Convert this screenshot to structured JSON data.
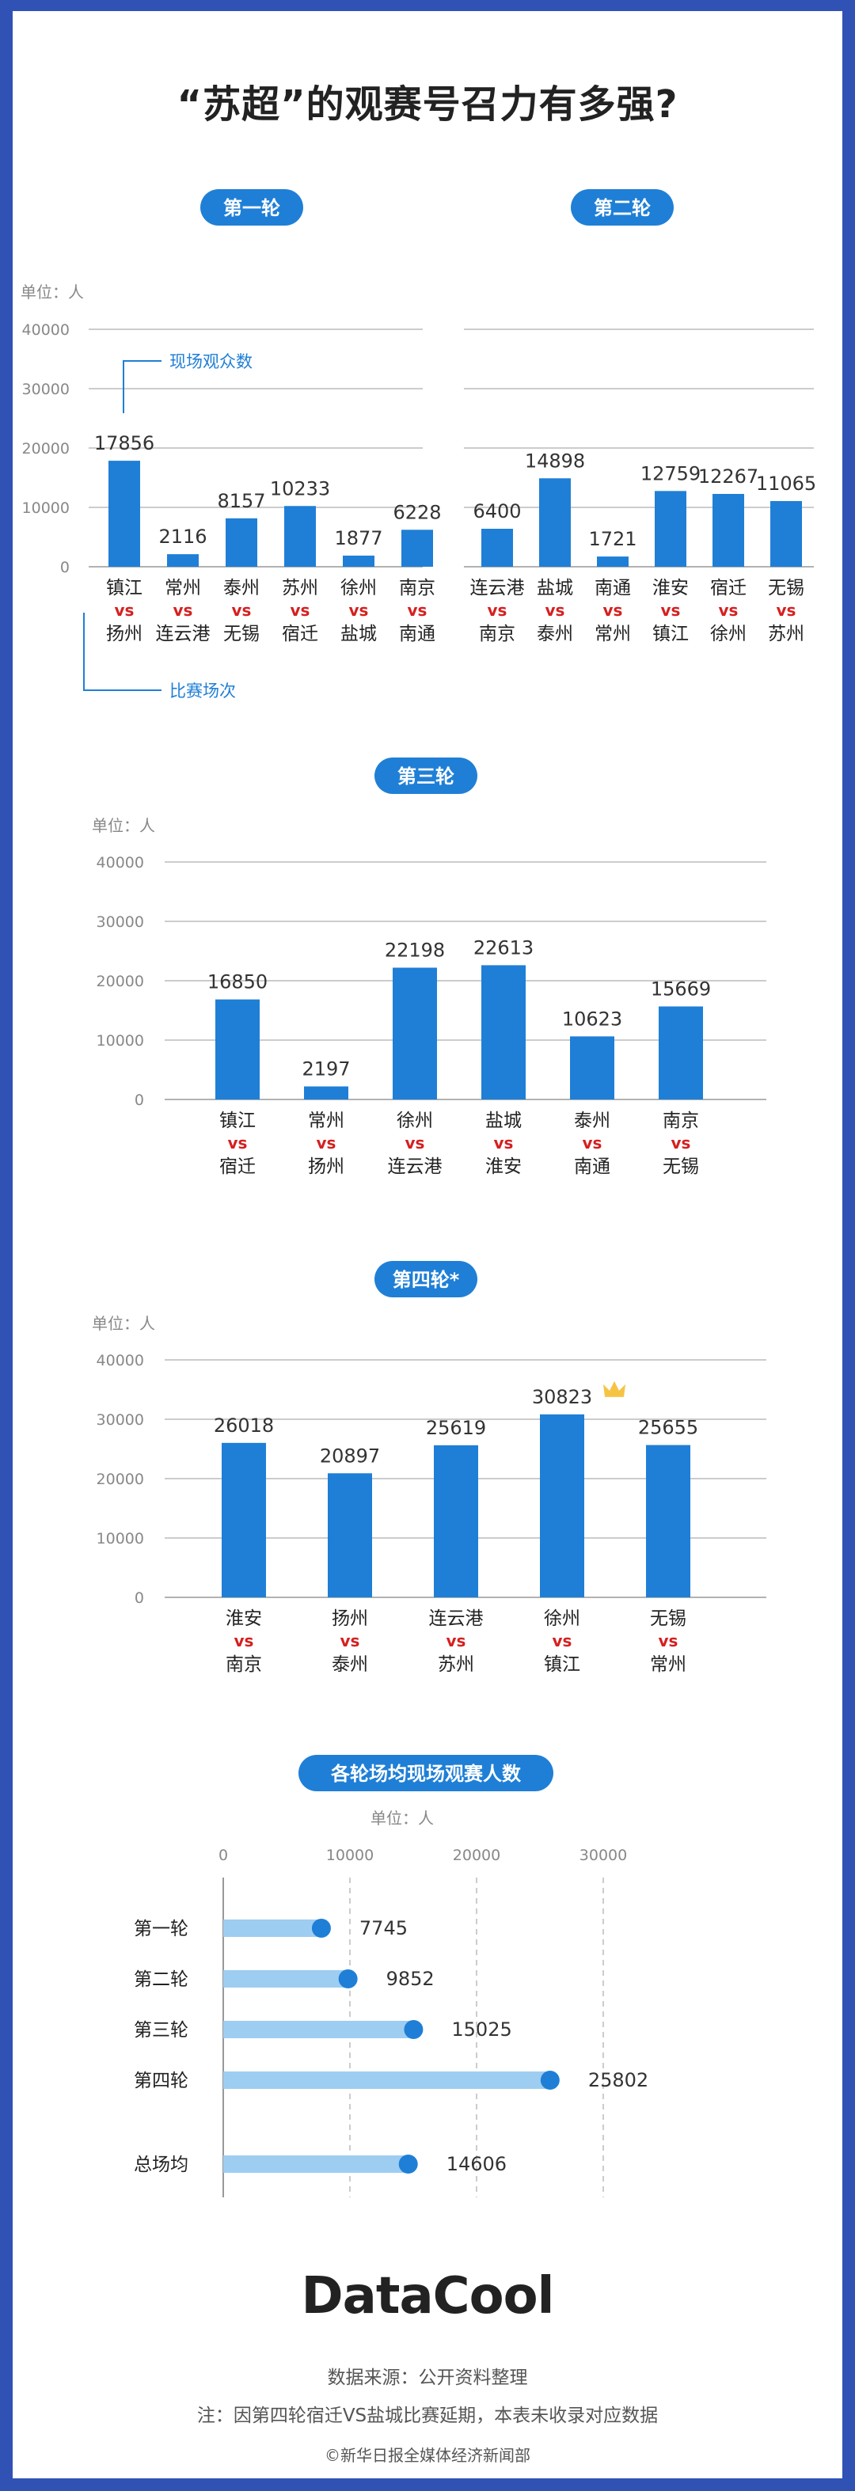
{
  "title": "“苏超”的观赛号召力有多强?",
  "colors": {
    "bar": "#1f7fd6",
    "vs": "#d61f1f",
    "pill": "#1f7fd6",
    "grid": "#bbbbbb",
    "avg_bar": "#9ecdf2",
    "annotation": "#1f7fd6"
  },
  "annotations": {
    "bar_value": "现场观众数",
    "matchup": "比赛场次"
  },
  "chart_data": [
    {
      "type": "bar",
      "title": "第一轮",
      "unit_label": "单位：人",
      "ylim": [
        0,
        40000
      ],
      "yticks": [
        "0",
        "10000",
        "20000",
        "30000",
        "40000"
      ],
      "matches": [
        {
          "home": "镇江",
          "vs": "vs",
          "away": "扬州",
          "value": 17856
        },
        {
          "home": "常州",
          "vs": "vs",
          "away": "连云港",
          "value": 2116
        },
        {
          "home": "泰州",
          "vs": "vs",
          "away": "无锡",
          "value": 8157
        },
        {
          "home": "苏州",
          "vs": "vs",
          "away": "宿迁",
          "value": 10233
        },
        {
          "home": "徐州",
          "vs": "vs",
          "away": "盐城",
          "value": 1877
        },
        {
          "home": "南京",
          "vs": "vs",
          "away": "南通",
          "value": 6228
        }
      ]
    },
    {
      "type": "bar",
      "title": "第二轮",
      "ylim": [
        0,
        40000
      ],
      "matches": [
        {
          "home": "连云港",
          "vs": "vs",
          "away": "南京",
          "value": 6400
        },
        {
          "home": "盐城",
          "vs": "vs",
          "away": "泰州",
          "value": 14898
        },
        {
          "home": "南通",
          "vs": "vs",
          "away": "常州",
          "value": 1721
        },
        {
          "home": "淮安",
          "vs": "vs",
          "away": "镇江",
          "value": 12759
        },
        {
          "home": "宿迁",
          "vs": "vs",
          "away": "徐州",
          "value": 12267
        },
        {
          "home": "无锡",
          "vs": "vs",
          "away": "苏州",
          "value": 11065
        }
      ]
    },
    {
      "type": "bar",
      "title": "第三轮",
      "unit_label": "单位：人",
      "ylim": [
        0,
        40000
      ],
      "yticks": [
        "0",
        "10000",
        "20000",
        "30000",
        "40000"
      ],
      "matches": [
        {
          "home": "镇江",
          "vs": "vs",
          "away": "宿迁",
          "value": 16850
        },
        {
          "home": "常州",
          "vs": "vs",
          "away": "扬州",
          "value": 2197
        },
        {
          "home": "徐州",
          "vs": "vs",
          "away": "连云港",
          "value": 22198
        },
        {
          "home": "盐城",
          "vs": "vs",
          "away": "淮安",
          "value": 22613
        },
        {
          "home": "泰州",
          "vs": "vs",
          "away": "南通",
          "value": 10623
        },
        {
          "home": "南京",
          "vs": "vs",
          "away": "无锡",
          "value": 15669
        }
      ]
    },
    {
      "type": "bar",
      "title": "第四轮*",
      "unit_label": "单位：人",
      "ylim": [
        0,
        40000
      ],
      "yticks": [
        "0",
        "10000",
        "20000",
        "30000",
        "40000"
      ],
      "highlight": "crown-icon",
      "matches": [
        {
          "home": "淮安",
          "vs": "vs",
          "away": "南京",
          "value": 26018
        },
        {
          "home": "扬州",
          "vs": "vs",
          "away": "泰州",
          "value": 20897
        },
        {
          "home": "连云港",
          "vs": "vs",
          "away": "苏州",
          "value": 25619
        },
        {
          "home": "徐州",
          "vs": "vs",
          "away": "镇江",
          "value": 30823
        },
        {
          "home": "无锡",
          "vs": "vs",
          "away": "常州",
          "value": 25655
        }
      ]
    },
    {
      "type": "bar",
      "orientation": "horizontal",
      "title": "各轮场均现场观赛人数",
      "unit_label": "单位：人",
      "xlim": [
        0,
        30000
      ],
      "xticks": [
        "0",
        "10000",
        "20000",
        "30000"
      ],
      "categories": [
        "第一轮",
        "第二轮",
        "第三轮",
        "第四轮",
        "总场均"
      ],
      "values": [
        7745,
        9852,
        15025,
        25802,
        14606
      ]
    }
  ],
  "logo": "DataCool",
  "source": "数据来源：公开资料整理",
  "note": "注：因第四轮宿迁VS盐城比赛延期，本表未收录对应数据",
  "copyright": "©新华日报全媒体经济新闻部"
}
